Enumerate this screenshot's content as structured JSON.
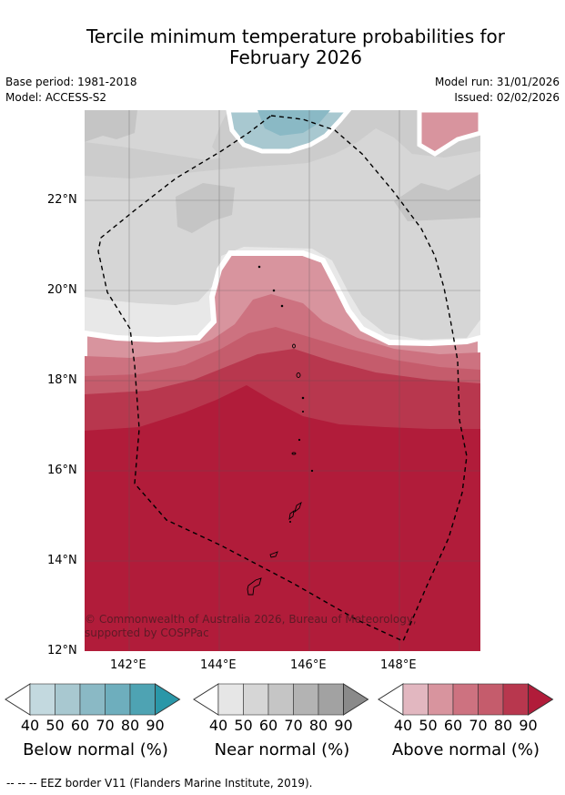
{
  "title_line1": "Tercile minimum temperature probabilities for",
  "title_line2": "February 2026",
  "base_period": "Base period: 1981-2018",
  "model": "Model: ACCESS-S2",
  "model_run": "Model run: 31/01/2026",
  "issued": "Issued: 02/02/2026",
  "map": {
    "lat_labels": [
      "22°N",
      "20°N",
      "18°N",
      "16°N",
      "14°N",
      "12°N"
    ],
    "lon_labels": [
      "142°E",
      "144°E",
      "146°E",
      "148°E"
    ],
    "copyright": "© Commonwealth of Australia 2026, Bureau of Meteorology, supported by COSPPac"
  },
  "colorbars": [
    {
      "name": "below",
      "label": "Below normal (%)",
      "ticks": [
        "40",
        "50",
        "60",
        "70",
        "80",
        "90"
      ],
      "colors": [
        "#c3d9df",
        "#a8c8d0",
        "#8ab9c5",
        "#6eaebd",
        "#4ea3b3",
        "#2a97a8"
      ]
    },
    {
      "name": "near",
      "label": "Near normal (%)",
      "ticks": [
        "40",
        "50",
        "60",
        "70",
        "80",
        "90"
      ],
      "colors": [
        "#e6e6e6",
        "#d6d6d6",
        "#c5c5c5",
        "#b3b3b3",
        "#a2a2a2",
        "#8a8a8a"
      ]
    },
    {
      "name": "above",
      "label": "Above normal (%)",
      "ticks": [
        "40",
        "50",
        "60",
        "70",
        "80",
        "90"
      ],
      "colors": [
        "#e2b7c0",
        "#d8949e",
        "#cd7280",
        "#c55c6c",
        "#b8374e",
        "#b11c3a"
      ]
    }
  ],
  "footer": "--  --  -- EEZ border V11 (Flanders Marine Institute, 2019)."
}
